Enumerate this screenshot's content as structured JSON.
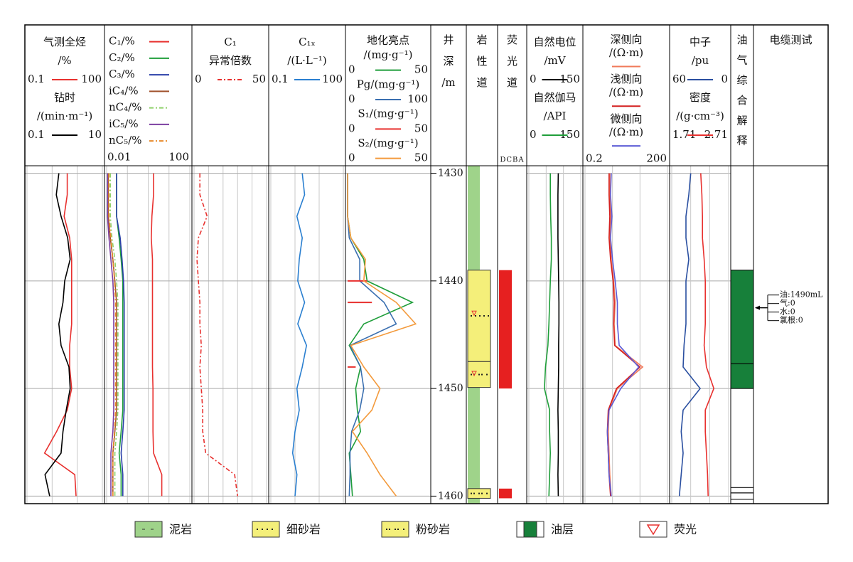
{
  "depth_axis": {
    "lim": [
      1429.3,
      1460.7
    ],
    "ticks": [
      1430,
      1440,
      1450,
      1460
    ]
  },
  "depths": [
    1430,
    1432,
    1434,
    1436,
    1438,
    1440,
    1442,
    1444,
    1446,
    1448,
    1450,
    1452,
    1454,
    1456,
    1458,
    1460
  ],
  "tracks": [
    {
      "type": "curves",
      "layout": "stack",
      "xticks": [
        0.1,
        1,
        10,
        100
      ],
      "curves": [
        {
          "label": [
            "气测全烃",
            "/%"
          ],
          "color": "#e8312f",
          "lim": [
            0.1,
            100
          ],
          "log": true,
          "values": [
            4,
            4,
            3,
            5,
            6,
            6,
            6,
            6,
            5,
            5,
            6,
            4,
            1.5,
            0.5,
            8,
            9
          ]
        },
        {
          "label": [
            "钻时",
            "/(min·m⁻¹)"
          ],
          "color": "#000000",
          "lim": [
            0.1,
            10
          ],
          "log": true,
          "values": [
            0.7,
            0.6,
            0.8,
            1.2,
            1.4,
            1.0,
            0.9,
            0.7,
            0.8,
            1.3,
            1.4,
            1.1,
            0.9,
            0.8,
            0.3,
            0.4
          ]
        }
      ]
    },
    {
      "type": "curves",
      "layout": "list",
      "lim": [
        0.01,
        100
      ],
      "log": true,
      "xticks": [
        0.01,
        0.1,
        1,
        10,
        100
      ],
      "curves": [
        {
          "label": [
            "C₁/%"
          ],
          "color": "#e8312f",
          "values": [
            1.8,
            1.8,
            1.5,
            1.4,
            1.6,
            1.6,
            1.6,
            1.6,
            1.6,
            1.6,
            1.7,
            1.7,
            1.7,
            1.8,
            4.5,
            4.5
          ]
        },
        {
          "label": [
            "C₂/%"
          ],
          "color": "#1f9e3a",
          "values": [
            0.03,
            0.03,
            0.03,
            0.04,
            0.05,
            0.06,
            0.06,
            0.06,
            0.06,
            0.06,
            0.06,
            0.06,
            0.05,
            0.04,
            0.05,
            0.05
          ]
        },
        {
          "label": [
            "C₃/%"
          ],
          "color": "#2a3fa8",
          "values": [
            0.03,
            0.03,
            0.03,
            0.045,
            0.055,
            0.065,
            0.07,
            0.07,
            0.07,
            0.07,
            0.07,
            0.07,
            0.06,
            0.05,
            0.06,
            0.06
          ]
        },
        {
          "label": [
            "iC₄/%"
          ],
          "color": "#a0522d",
          "values": [
            0.012,
            0.012,
            0.012,
            0.015,
            0.02,
            0.025,
            0.03,
            0.03,
            0.03,
            0.03,
            0.03,
            0.03,
            0.025,
            0.02,
            0.02,
            0.02
          ]
        },
        {
          "label": [
            "nC₄/%"
          ],
          "color": "#8fd16a",
          "dash": true,
          "values": [
            0.015,
            0.015,
            0.015,
            0.018,
            0.025,
            0.03,
            0.035,
            0.035,
            0.035,
            0.035,
            0.035,
            0.035,
            0.03,
            0.025,
            0.025,
            0.025
          ]
        },
        {
          "label": [
            "iC₅/%"
          ],
          "color": "#7b3fa0",
          "values": [
            0.011,
            0.011,
            0.011,
            0.013,
            0.016,
            0.02,
            0.022,
            0.022,
            0.022,
            0.022,
            0.022,
            0.022,
            0.02,
            0.016,
            0.016,
            0.016
          ]
        },
        {
          "label": [
            "nC₅/%"
          ],
          "color": "#e88a2a",
          "dash": true,
          "values": [
            0.013,
            0.013,
            0.013,
            0.016,
            0.02,
            0.024,
            0.027,
            0.027,
            0.027,
            0.027,
            0.027,
            0.027,
            0.024,
            0.02,
            0.02,
            0.02
          ]
        }
      ]
    },
    {
      "type": "curves",
      "layout": "stack",
      "xticks": [
        0,
        10,
        20,
        30,
        40,
        50
      ],
      "curves": [
        {
          "label": [
            "C₁",
            "异常倍数"
          ],
          "color": "#e8312f",
          "dash": true,
          "lim": [
            0,
            50
          ],
          "log": false,
          "values": [
            4,
            4,
            9,
            3,
            2,
            3,
            4,
            4,
            5,
            4,
            5,
            6,
            6,
            8,
            28,
            30
          ]
        }
      ]
    },
    {
      "type": "curves",
      "layout": "stack",
      "xticks": [
        0.1,
        1,
        10,
        100
      ],
      "curves": [
        {
          "label": [
            "C₁ₓ",
            "/(L·L⁻¹)"
          ],
          "color": "#2a7fd0",
          "lim": [
            0.1,
            100
          ],
          "log": true,
          "values": [
            2,
            2.5,
            1.2,
            2,
            1.5,
            1.3,
            2.5,
            1.3,
            3,
            2,
            1.2,
            1.5,
            1,
            0.8,
            1.2,
            1
          ]
        }
      ]
    },
    {
      "type": "curves",
      "layout": "stack",
      "title": "地化亮点",
      "curves": [
        {
          "label": [
            "/(mg·g⁻¹)"
          ],
          "color": "#1f9e3a",
          "lim": [
            0,
            50
          ],
          "log": false,
          "values": [
            0,
            0,
            0,
            2,
            10,
            12,
            40,
            10,
            1,
            8,
            5,
            6,
            8,
            1,
            2,
            3
          ]
        },
        {
          "label": [
            "Pg/(mg·g⁻¹)"
          ],
          "color": "#3a6fb0",
          "lim": [
            0,
            100
          ],
          "log": false,
          "values": [
            0,
            0,
            0,
            2,
            15,
            15,
            45,
            60,
            3,
            16,
            20,
            15,
            5,
            3,
            3,
            2
          ]
        },
        {
          "label": [
            "S₁/(mg·g⁻¹)"
          ],
          "color": "#e8312f",
          "lim": [
            0,
            50
          ],
          "log": false,
          "bars": true,
          "values": [
            0,
            0,
            0,
            0,
            0,
            12,
            15,
            0,
            0,
            5,
            0,
            0,
            0,
            0,
            0,
            0
          ]
        },
        {
          "label": [
            "S₂/(mg·g⁻¹)"
          ],
          "color": "#f39a3c",
          "lim": [
            0,
            50
          ],
          "log": false,
          "values": [
            0,
            0,
            0,
            2,
            11,
            10,
            30,
            42,
            2,
            10,
            20,
            15,
            3,
            12,
            20,
            30
          ]
        }
      ]
    },
    {
      "type": "depth",
      "label": [
        "井",
        "深",
        "/m"
      ]
    },
    {
      "type": "lithology",
      "label": [
        "岩",
        "性",
        "道"
      ],
      "intervals": [
        {
          "top": 1429.3,
          "bottom": 1460.7,
          "rock": "mudstone"
        },
        {
          "top": 1439,
          "bottom": 1447.5,
          "rock": "fine-sandstone"
        },
        {
          "top": 1447.5,
          "bottom": 1449.9,
          "rock": "siltstone"
        },
        {
          "top": 1459.3,
          "bottom": 1460.2,
          "rock": "siltstone"
        }
      ],
      "fluorescence_marks": [
        1443,
        1448.6
      ]
    },
    {
      "type": "fluorescence",
      "label": [
        "荧",
        "光",
        "道"
      ],
      "sublabel": "DCBA",
      "intervals": [
        {
          "top": 1439,
          "bottom": 1450
        },
        {
          "top": 1459.3,
          "bottom": 1460.2
        }
      ]
    },
    {
      "type": "curves",
      "layout": "stack",
      "xticks": [
        0,
        50,
        100,
        150
      ],
      "curves": [
        {
          "label": [
            "自然电位",
            "/mV"
          ],
          "color": "#000000",
          "lim": [
            0,
            150
          ],
          "log": false,
          "values": [
            85,
            84,
            84,
            84,
            85,
            86,
            87,
            87,
            86,
            86,
            85,
            84,
            85,
            85,
            84,
            85
          ]
        },
        {
          "label": [
            "自然伽马",
            "/API"
          ],
          "color": "#1f9e3a",
          "lim": [
            0,
            150
          ],
          "log": false,
          "values": [
            62,
            62,
            63,
            65,
            65,
            62,
            60,
            58,
            55,
            48,
            45,
            60,
            60,
            62,
            60,
            58
          ]
        }
      ]
    },
    {
      "type": "curves",
      "layout": "stack",
      "lim": [
        0.2,
        200
      ],
      "log": true,
      "xticks": [
        0.2,
        2,
        20,
        200
      ],
      "curves": [
        {
          "label": [
            "深侧向",
            "/(Ω·m)"
          ],
          "color": "#f07a5a",
          "values": [
            1.6,
            1.6,
            1.7,
            1.6,
            1.8,
            2.2,
            2.5,
            2.3,
            2.5,
            25,
            3,
            1.5,
            1.4,
            1.5,
            1.6,
            1.8
          ]
        },
        {
          "label": [
            "浅侧向",
            "/(Ω·m)"
          ],
          "color": "#d42020",
          "values": [
            1.5,
            1.5,
            1.6,
            1.5,
            1.7,
            2.1,
            2.3,
            2.2,
            2.4,
            20,
            2.8,
            1.4,
            1.3,
            1.4,
            1.5,
            1.7
          ]
        },
        {
          "label": [
            "微侧向",
            "/(Ω·m)"
          ],
          "color": "#5b5bd6",
          "values": [
            1.8,
            1.7,
            1.9,
            1.7,
            2,
            2.5,
            3,
            3,
            3.5,
            18,
            4,
            1.5,
            1.3,
            1.4,
            1.5,
            1.8
          ]
        }
      ]
    },
    {
      "type": "curves",
      "layout": "stack",
      "xticks": [
        60,
        40,
        20,
        0
      ],
      "curves": [
        {
          "label": [
            "中子",
            "/pu"
          ],
          "color": "#2a4fa0",
          "lim": [
            60,
            0
          ],
          "log": false,
          "values": [
            40,
            42,
            45,
            45,
            42,
            45,
            45,
            45,
            47,
            48,
            30,
            48,
            50,
            48,
            50,
            52
          ]
        },
        {
          "label": [
            "密度",
            "/(g·cm⁻³)"
          ],
          "color": "#e8312f",
          "lim": [
            1.71,
            2.71
          ],
          "log": false,
          "values": [
            2.22,
            2.24,
            2.25,
            2.25,
            2.28,
            2.3,
            2.3,
            2.3,
            2.28,
            2.32,
            2.45,
            2.3,
            2.3,
            2.32,
            2.34,
            2.35
          ]
        }
      ]
    },
    {
      "type": "interpretation",
      "label": [
        "油",
        "气",
        "综",
        "合",
        "解",
        "释"
      ],
      "intervals": [
        {
          "top": 1439,
          "bottom": 1447.7
        },
        {
          "top": 1447.7,
          "bottom": 1450
        }
      ],
      "other_intervals": [
        {
          "top": 1459.2,
          "bottom": 1459.7
        },
        {
          "top": 1459.7,
          "bottom": 1460.3
        }
      ]
    },
    {
      "type": "cable",
      "label": [
        "电缆测试"
      ],
      "depth": 1442.5,
      "results": [
        "油:1490mL",
        "气:0",
        "水:0",
        "氯根:0"
      ]
    }
  ],
  "legend": [
    {
      "label": "泥岩",
      "pattern": "mudstone"
    },
    {
      "label": "细砂岩",
      "pattern": "fine-sandstone"
    },
    {
      "label": "粉砂岩",
      "pattern": "siltstone"
    },
    {
      "label": "油层",
      "pattern": "oil-layer"
    },
    {
      "label": "荧光",
      "pattern": "fluorescence"
    }
  ]
}
